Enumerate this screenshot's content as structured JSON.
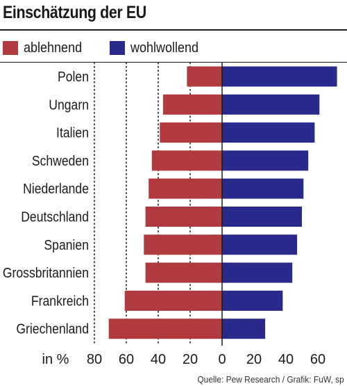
{
  "title": "Einschätzung der EU",
  "source": "Quelle: Pew Research / Grafik: FuW, sp",
  "legend": [
    {
      "label": "ablehnend",
      "color": "#b03a3e"
    },
    {
      "label": "wohlwollend",
      "color": "#2a2a8c"
    }
  ],
  "chart_data": {
    "type": "bar",
    "orientation": "horizontal-diverging",
    "categories": [
      "Polen",
      "Ungarn",
      "Italien",
      "Schweden",
      "Niederlande",
      "Deutschland",
      "Spanien",
      "Grossbritannien",
      "Frankreich",
      "Griechenland"
    ],
    "series": [
      {
        "name": "ablehnend",
        "values": [
          22,
          37,
          39,
          44,
          46,
          48,
          49,
          48,
          61,
          71
        ],
        "color": "#b03a3e"
      },
      {
        "name": "wohlwollend",
        "values": [
          72,
          61,
          58,
          54,
          51,
          50,
          47,
          44,
          38,
          27
        ],
        "color": "#2a2a8c"
      }
    ],
    "axis_label": "in %",
    "ticks": [
      "80",
      "60",
      "40",
      "20",
      "0",
      "20",
      "40",
      "60"
    ],
    "xlim": [
      -80,
      72
    ],
    "grid": "dotted vertical at 20-step ticks on the negative side"
  }
}
